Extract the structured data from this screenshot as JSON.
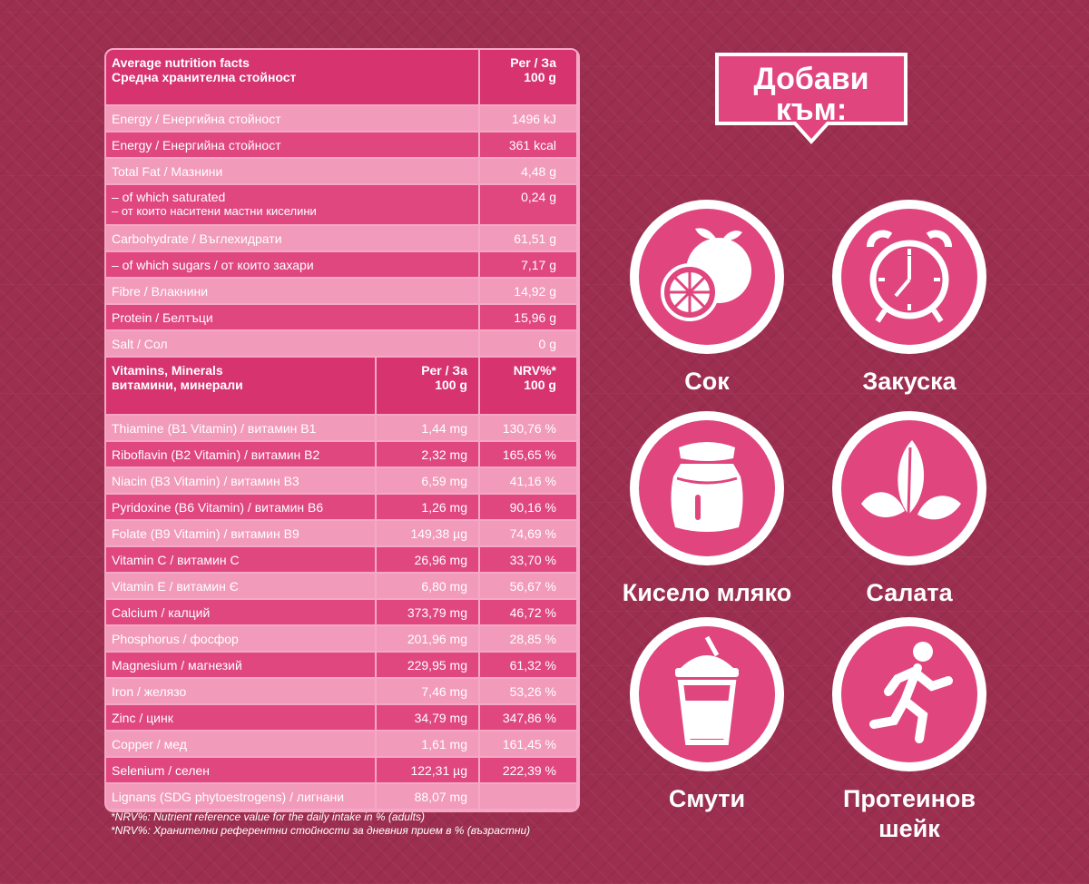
{
  "table": {
    "header": {
      "title_en": "Average nutrition facts",
      "title_bg": "Средна хранителна стойност",
      "per_line1": "Per / За",
      "per_line2": "100 g"
    },
    "nutrition_rows": [
      {
        "label": "Energy / Енергийна стойност",
        "value": "1496 kJ"
      },
      {
        "label": "Energy / Енергийна стойност",
        "value": "361 kcal"
      },
      {
        "label": "Total Fat / Мазнини",
        "value": "4,48 g"
      },
      {
        "label": "– of which saturated",
        "sublabel": "– от които наситени мастни киселини",
        "value": "0,24 g"
      },
      {
        "label": "Carbohydrate / Въглехидрати",
        "value": "61,51 g"
      },
      {
        "label": "– of which sugars / от които захари",
        "value": "7,17 g"
      },
      {
        "label": "Fibre / Влакнини",
        "value": "14,92 g"
      },
      {
        "label": "Protein / Белтъци",
        "value": "15,96 g"
      },
      {
        "label": "Salt / Сол",
        "value": "0 g"
      }
    ],
    "vitamins_header": {
      "title_en": "Vitamins, Minerals",
      "title_bg": "витамини, минерали",
      "per_line1": "Per / За",
      "per_line2": "100 g",
      "nrv_line1": "NRV%*",
      "nrv_line2": "100 g"
    },
    "vitamin_rows": [
      {
        "label": "Thiamine (B1 Vitamin) / витамин B1",
        "value": "1,44 mg",
        "nrv": "130,76 %"
      },
      {
        "label": "Riboflavin (B2 Vitamin) / витамин B2",
        "value": "2,32 mg",
        "nrv": "165,65 %"
      },
      {
        "label": "Niacin (B3 Vitamin) / витамин B3",
        "value": "6,59 mg",
        "nrv": "41,16 %"
      },
      {
        "label": "Pyridoxine (B6 Vitamin) / витамин B6",
        "value": "1,26 mg",
        "nrv": "90,16 %"
      },
      {
        "label": "Folate (B9 Vitamin) / витамин B9",
        "value": "149,38 µg",
        "nrv": "74,69 %"
      },
      {
        "label": "Vitamin C / витамин C",
        "value": "26,96 mg",
        "nrv": "33,70 %"
      },
      {
        "label": "Vitamin E / витамин Є",
        "value": "6,80 mg",
        "nrv": "56,67 %"
      },
      {
        "label": "Calcium / калций",
        "value": "373,79 mg",
        "nrv": "46,72 %"
      },
      {
        "label": "Phosphorus / фосфор",
        "value": "201,96 mg",
        "nrv": "28,85 %"
      },
      {
        "label": "Magnesium / магнезий",
        "value": "229,95 mg",
        "nrv": "61,32 %"
      },
      {
        "label": "Iron / желязо",
        "value": "7,46 mg",
        "nrv": "53,26 %"
      },
      {
        "label": "Zinc / цинк",
        "value": "34,79 mg",
        "nrv": "347,86 %"
      },
      {
        "label": "Copper / мед",
        "value": "1,61 mg",
        "nrv": "161,45 %"
      },
      {
        "label": "Selenium / селен",
        "value": "122,31 µg",
        "nrv": "222,39 %"
      },
      {
        "label": "Lignans (SDG phytoestrogens) / лигнани",
        "value": "88,07 mg",
        "nrv": ""
      }
    ],
    "footnote_en": "*NRV%: Nutrient reference value for the daily intake in % (adults)",
    "footnote_bg": "*NRV%: Хранителни референтни стойности за дневния прием в % (възрастни)"
  },
  "banner": {
    "line1": "Добави",
    "line2": "към:"
  },
  "tiles": [
    {
      "label": "Сок",
      "icon": "citrus-fruit-icon"
    },
    {
      "label": "Закуска",
      "icon": "alarm-clock-icon"
    },
    {
      "label": "Кисело мляко",
      "icon": "jar-icon"
    },
    {
      "label": "Салата",
      "icon": "leaves-icon"
    },
    {
      "label": "Смути",
      "icon": "smoothie-cup-icon"
    },
    {
      "label": "Протеинов шейк",
      "icon": "running-man-icon"
    }
  ],
  "colors": {
    "background": "#9c2e4f",
    "header_pink": "#d6336f",
    "row_dark": "#e0477f",
    "row_light": "#f29ab9",
    "circle_pink": "#e0457e"
  }
}
